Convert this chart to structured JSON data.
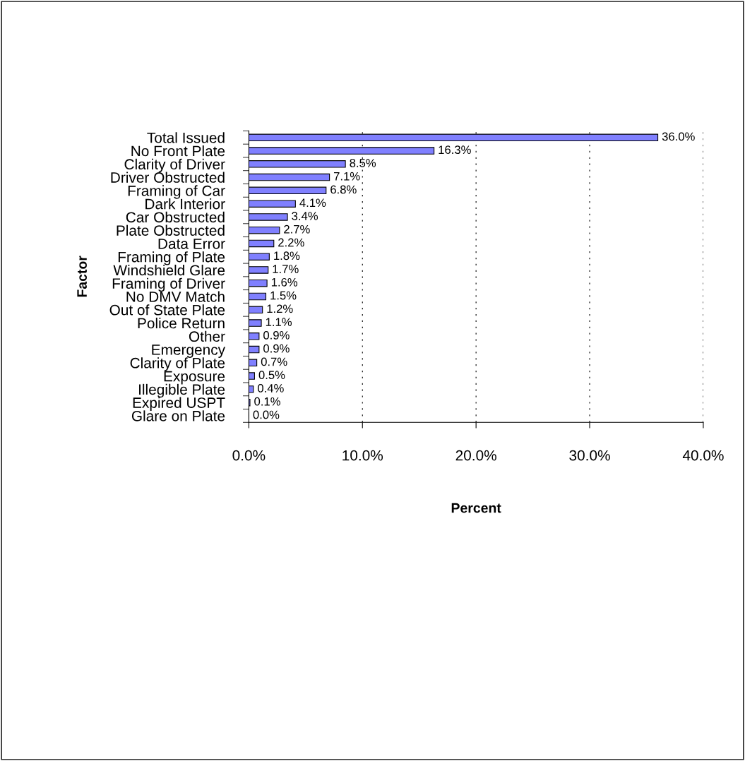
{
  "chart_data": {
    "type": "bar",
    "orientation": "horizontal",
    "xlabel": "Percent",
    "ylabel": "Factor",
    "categories": [
      "Total Issued",
      "No Front Plate",
      "Clarity of Driver",
      "Driver Obstructed",
      "Framing of Car",
      "Dark Interior",
      "Car Obstructed",
      "Plate Obstructed",
      "Data Error",
      "Framing of Plate",
      "Windshield Glare",
      "Framing of Driver",
      "No DMV Match",
      "Out of State Plate",
      "Police Return",
      "Other",
      "Emergency",
      "Clarity of Plate",
      "Exposure",
      "Illegible Plate",
      "Expired USPT",
      "Glare on Plate"
    ],
    "values": [
      36.0,
      16.3,
      8.5,
      7.1,
      6.8,
      4.1,
      3.4,
      2.7,
      2.2,
      1.8,
      1.7,
      1.6,
      1.5,
      1.2,
      1.1,
      0.9,
      0.9,
      0.7,
      0.5,
      0.4,
      0.1,
      0.0
    ],
    "value_labels": [
      "36.0%",
      "16.3%",
      "8.5%",
      "7.1%",
      "6.8%",
      "4.1%",
      "3.4%",
      "2.7%",
      "2.2%",
      "1.8%",
      "1.7%",
      "1.6%",
      "1.5%",
      "1.2%",
      "1.1%",
      "0.9%",
      "0.9%",
      "0.7%",
      "0.5%",
      "0.4%",
      "0.1%",
      "0.0%"
    ],
    "color": "#8080ff",
    "xlim": [
      0,
      40
    ],
    "xticks": [
      {
        "value": 0,
        "label": "0.0%"
      },
      {
        "value": 10,
        "label": "10.0%"
      },
      {
        "value": 20,
        "label": "20.0%"
      },
      {
        "value": 30,
        "label": "30.0%"
      },
      {
        "value": 40,
        "label": "40.0%"
      }
    ],
    "grid": "x",
    "legend": false
  }
}
